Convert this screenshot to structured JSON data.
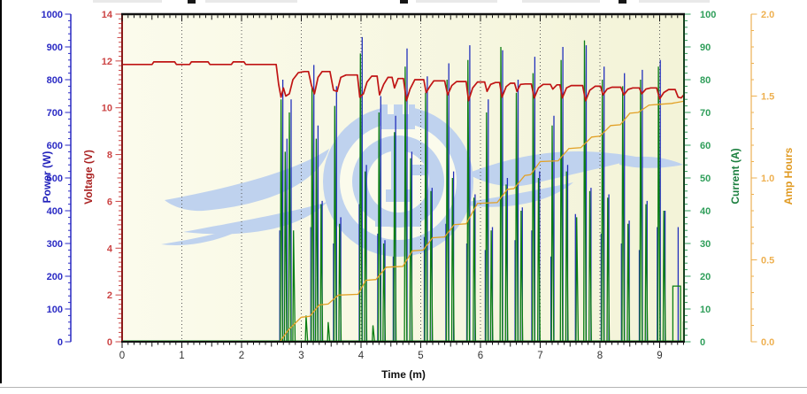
{
  "window": {
    "note": "cropped chart view of an e-flight data logger",
    "left_border_color": "#000000",
    "bottom_rule_color": "#b5b5b5"
  },
  "chart": {
    "plot_background_left": "#fbfbec",
    "plot_background_right": "#f3f3d8",
    "watermark_color": "#bfd2ee",
    "grid_color": "#555555",
    "top_border_color": "#111111",
    "bottom_border_color": "#111111"
  },
  "axes": {
    "power": {
      "title": "Power (W)",
      "color": "#2222bb",
      "tick_color": "#2a2ac4",
      "trace_color": "#2230bc",
      "min": 0,
      "max": 1000,
      "major_step": 100,
      "minor_step": 20,
      "tick_labels": [
        "0",
        "100",
        "200",
        "300",
        "400",
        "500",
        "600",
        "700",
        "800",
        "900",
        "1000"
      ]
    },
    "voltage": {
      "title": "Voltage (V)",
      "color": "#aa2222",
      "tick_color": "#c44",
      "trace_color": "#c01414",
      "border_color": "#8b1a1a",
      "min": 0,
      "max": 14,
      "major_step": 2,
      "minor_step": 0.2,
      "tick_labels": [
        "0",
        "2",
        "4",
        "6",
        "8",
        "10",
        "12",
        "14"
      ]
    },
    "current": {
      "title": "Current (A)",
      "color": "#1d8040",
      "tick_color": "#2f9e5a",
      "trace_color": "#0a7d12",
      "border_color": "#16401f",
      "min": 0,
      "max": 100,
      "major_step": 10,
      "minor_step": 2,
      "tick_labels": [
        "0",
        "10",
        "20",
        "30",
        "40",
        "50",
        "60",
        "70",
        "80",
        "90",
        "100"
      ]
    },
    "amp_hours": {
      "title": "Amp Hours",
      "color": "#e09a22",
      "tick_color": "#eeb050",
      "trace_color": "#e2a126",
      "axis_line_color": "#e8a030",
      "min": 0,
      "max": 2.0,
      "major_step": 0.5,
      "minor_step": 0.1,
      "tick_labels": [
        "0.0",
        "0.5",
        "1.0",
        "1.5",
        "2.0"
      ]
    },
    "time": {
      "title": "Time (m)",
      "color": "#111111",
      "tick_label_color": "#333333",
      "min": 0,
      "max": 9.41,
      "major_step": 1,
      "minor_step": 0.1,
      "tick_labels": [
        "0",
        "1",
        "2",
        "3",
        "4",
        "5",
        "6",
        "7",
        "8",
        "9"
      ]
    }
  },
  "chart_data": {
    "type": "line",
    "title": "",
    "xlabel": "Time (m)",
    "x_range": [
      0,
      9.41
    ],
    "grid": {
      "vertical_major": true,
      "horizontal": false,
      "style": "dotted"
    },
    "legend": "none",
    "y_axes": [
      {
        "name": "Power (W)",
        "range": [
          0,
          1000
        ]
      },
      {
        "name": "Voltage (V)",
        "range": [
          0,
          14
        ]
      },
      {
        "name": "Current (A)",
        "range": [
          0,
          100
        ]
      },
      {
        "name": "Amp Hours",
        "range": [
          0,
          2.0
        ]
      }
    ],
    "series": [
      {
        "name": "Voltage (V)",
        "axis": "voltage",
        "color": "#c01414",
        "style": "line",
        "points": [
          [
            0,
            11.85
          ],
          [
            0.5,
            11.85
          ],
          [
            0.53,
            11.96
          ],
          [
            0.88,
            11.96
          ],
          [
            0.91,
            11.85
          ],
          [
            1.13,
            11.85
          ],
          [
            1.16,
            11.96
          ],
          [
            1.44,
            11.96
          ],
          [
            1.47,
            11.85
          ],
          [
            1.83,
            11.85
          ],
          [
            1.86,
            11.96
          ],
          [
            2.04,
            11.96
          ],
          [
            2.07,
            11.85
          ],
          [
            2.58,
            11.85
          ],
          [
            2.62,
            11.0
          ],
          [
            2.66,
            10.45
          ],
          [
            2.7,
            10.85
          ],
          [
            2.74,
            10.5
          ],
          [
            2.8,
            10.6
          ],
          [
            2.86,
            11.2
          ],
          [
            2.95,
            11.5
          ],
          [
            3.05,
            11.55
          ],
          [
            3.12,
            11.55
          ],
          [
            3.17,
            10.95
          ],
          [
            3.22,
            10.6
          ],
          [
            3.28,
            11.3
          ],
          [
            3.35,
            11.55
          ],
          [
            3.48,
            11.55
          ],
          [
            3.54,
            10.75
          ],
          [
            3.6,
            10.7
          ],
          [
            3.66,
            11.3
          ],
          [
            3.75,
            11.4
          ],
          [
            3.94,
            11.4
          ],
          [
            3.98,
            10.45
          ],
          [
            4.04,
            10.6
          ],
          [
            4.1,
            11.1
          ],
          [
            4.18,
            11.35
          ],
          [
            4.27,
            11.35
          ],
          [
            4.31,
            10.55
          ],
          [
            4.38,
            11.0
          ],
          [
            4.45,
            11.3
          ],
          [
            4.52,
            11.3
          ],
          [
            4.56,
            10.85
          ],
          [
            4.62,
            11.25
          ],
          [
            4.71,
            11.25
          ],
          [
            4.76,
            10.3
          ],
          [
            4.82,
            10.8
          ],
          [
            4.9,
            11.2
          ],
          [
            5.05,
            11.2
          ],
          [
            5.09,
            10.65
          ],
          [
            5.15,
            10.9
          ],
          [
            5.22,
            11.15
          ],
          [
            5.4,
            11.15
          ],
          [
            5.45,
            10.55
          ],
          [
            5.52,
            10.95
          ],
          [
            5.6,
            11.12
          ],
          [
            5.76,
            11.12
          ],
          [
            5.8,
            10.3
          ],
          [
            5.87,
            10.85
          ],
          [
            5.95,
            11.1
          ],
          [
            6.07,
            11.1
          ],
          [
            6.11,
            10.7
          ],
          [
            6.17,
            11.0
          ],
          [
            6.25,
            11.08
          ],
          [
            6.32,
            11.08
          ],
          [
            6.36,
            10.45
          ],
          [
            6.43,
            10.9
          ],
          [
            6.5,
            11.05
          ],
          [
            6.57,
            11.05
          ],
          [
            6.61,
            10.7
          ],
          [
            6.67,
            11.0
          ],
          [
            6.75,
            11.02
          ],
          [
            6.85,
            11.02
          ],
          [
            6.9,
            10.42
          ],
          [
            6.97,
            10.85
          ],
          [
            7.05,
            11.0
          ],
          [
            7.17,
            11.0
          ],
          [
            7.21,
            10.8
          ],
          [
            7.28,
            10.98
          ],
          [
            7.33,
            10.98
          ],
          [
            7.37,
            10.42
          ],
          [
            7.44,
            10.85
          ],
          [
            7.52,
            10.95
          ],
          [
            7.71,
            10.95
          ],
          [
            7.76,
            10.3
          ],
          [
            7.83,
            10.75
          ],
          [
            7.92,
            10.92
          ],
          [
            8.01,
            10.92
          ],
          [
            8.05,
            10.55
          ],
          [
            8.12,
            10.8
          ],
          [
            8.2,
            10.88
          ],
          [
            8.35,
            10.88
          ],
          [
            8.4,
            10.55
          ],
          [
            8.47,
            10.78
          ],
          [
            8.55,
            10.85
          ],
          [
            8.66,
            10.85
          ],
          [
            8.7,
            10.6
          ],
          [
            8.77,
            10.8
          ],
          [
            8.85,
            10.85
          ],
          [
            8.95,
            10.85
          ],
          [
            9.0,
            10.38
          ],
          [
            9.07,
            10.65
          ],
          [
            9.15,
            10.78
          ],
          [
            9.26,
            10.78
          ],
          [
            9.31,
            10.45
          ],
          [
            9.36,
            10.42
          ],
          [
            9.42,
            10.6
          ],
          [
            9.47,
            10.75
          ],
          [
            9.55,
            10.72
          ]
        ]
      },
      {
        "name": "Amp Hours",
        "axis": "amp_hours",
        "color": "#e2a126",
        "style": "line",
        "points": [
          [
            0,
            0
          ],
          [
            2.64,
            0
          ],
          [
            2.78,
            0.07
          ],
          [
            3.0,
            0.15
          ],
          [
            3.14,
            0.155
          ],
          [
            3.3,
            0.225
          ],
          [
            3.45,
            0.23
          ],
          [
            3.62,
            0.285
          ],
          [
            3.95,
            0.29
          ],
          [
            4.08,
            0.375
          ],
          [
            4.25,
            0.38
          ],
          [
            4.42,
            0.455
          ],
          [
            4.7,
            0.46
          ],
          [
            4.86,
            0.555
          ],
          [
            5.04,
            0.56
          ],
          [
            5.2,
            0.635
          ],
          [
            5.4,
            0.64
          ],
          [
            5.56,
            0.715
          ],
          [
            5.76,
            0.72
          ],
          [
            5.95,
            0.845
          ],
          [
            6.28,
            0.85
          ],
          [
            6.45,
            0.93
          ],
          [
            6.56,
            0.935
          ],
          [
            6.74,
            1.015
          ],
          [
            6.84,
            1.02
          ],
          [
            7.0,
            1.1
          ],
          [
            7.3,
            1.105
          ],
          [
            7.48,
            1.18
          ],
          [
            7.68,
            1.185
          ],
          [
            7.86,
            1.25
          ],
          [
            8.0,
            1.255
          ],
          [
            8.18,
            1.32
          ],
          [
            8.34,
            1.325
          ],
          [
            8.5,
            1.395
          ],
          [
            8.64,
            1.4
          ],
          [
            8.82,
            1.445
          ],
          [
            9.0,
            1.45
          ],
          [
            9.2,
            1.455
          ],
          [
            9.35,
            1.465
          ],
          [
            9.42,
            1.47
          ]
        ]
      },
      {
        "name": "Current (A)",
        "axis": "current",
        "color": "#0a7d12",
        "style": "spikes",
        "baseline": 0,
        "spikes": [
          [
            2.66,
            74
          ],
          [
            2.73,
            58
          ],
          [
            2.8,
            70
          ],
          [
            2.87,
            34
          ],
          [
            3.08,
            8
          ],
          [
            3.18,
            78
          ],
          [
            3.25,
            62
          ],
          [
            3.33,
            42
          ],
          [
            3.45,
            6
          ],
          [
            3.56,
            72
          ],
          [
            3.64,
            36
          ],
          [
            3.99,
            88
          ],
          [
            4.07,
            52
          ],
          [
            4.2,
            5
          ],
          [
            4.3,
            70
          ],
          [
            4.38,
            30
          ],
          [
            4.56,
            64
          ],
          [
            4.74,
            84
          ],
          [
            4.83,
            56
          ],
          [
            5.08,
            76
          ],
          [
            5.17,
            46
          ],
          [
            5.44,
            80
          ],
          [
            5.53,
            50
          ],
          [
            5.79,
            86
          ],
          [
            5.89,
            44
          ],
          [
            6.1,
            70
          ],
          [
            6.18,
            34
          ],
          [
            6.34,
            90
          ],
          [
            6.43,
            48
          ],
          [
            6.6,
            76
          ],
          [
            6.68,
            40
          ],
          [
            6.88,
            82
          ],
          [
            6.97,
            50
          ],
          [
            7.2,
            66
          ],
          [
            7.35,
            86
          ],
          [
            7.44,
            52
          ],
          [
            7.61,
            38
          ],
          [
            7.74,
            92
          ],
          [
            7.83,
            46
          ],
          [
            8.04,
            80
          ],
          [
            8.13,
            44
          ],
          [
            8.38,
            78
          ],
          [
            8.47,
            36
          ],
          [
            8.68,
            80
          ],
          [
            8.77,
            42
          ],
          [
            8.98,
            84
          ],
          [
            9.07,
            40
          ],
          [
            9.42,
            34
          ]
        ],
        "steps": [
          [
            9.22,
            9.35,
            17
          ],
          [
            9.4,
            9.45,
            6
          ]
        ]
      },
      {
        "name": "Power (W)",
        "axis": "power",
        "color": "#2230bc",
        "style": "spikes",
        "baseline": 0,
        "spikes": [
          [
            2.64,
            340
          ],
          [
            2.69,
            800
          ],
          [
            2.76,
            620
          ],
          [
            2.83,
            740
          ],
          [
            3.16,
            350
          ],
          [
            3.21,
            845
          ],
          [
            3.28,
            660
          ],
          [
            3.35,
            430
          ],
          [
            3.54,
            300
          ],
          [
            3.59,
            780
          ],
          [
            3.66,
            380
          ],
          [
            3.97,
            420
          ],
          [
            4.02,
            930
          ],
          [
            4.09,
            540
          ],
          [
            4.28,
            330
          ],
          [
            4.33,
            750
          ],
          [
            4.4,
            310
          ],
          [
            4.54,
            260
          ],
          [
            4.58,
            690
          ],
          [
            4.77,
            895
          ],
          [
            4.85,
            580
          ],
          [
            5.06,
            320
          ],
          [
            5.11,
            810
          ],
          [
            5.19,
            470
          ],
          [
            5.42,
            360
          ],
          [
            5.47,
            850
          ],
          [
            5.55,
            520
          ],
          [
            5.77,
            300
          ],
          [
            5.82,
            905
          ],
          [
            5.91,
            450
          ],
          [
            6.08,
            280
          ],
          [
            6.13,
            740
          ],
          [
            6.2,
            350
          ],
          [
            6.37,
            890
          ],
          [
            6.45,
            500
          ],
          [
            6.58,
            310
          ],
          [
            6.63,
            800
          ],
          [
            6.7,
            410
          ],
          [
            6.86,
            340
          ],
          [
            6.91,
            870
          ],
          [
            6.99,
            520
          ],
          [
            7.18,
            260
          ],
          [
            7.23,
            690
          ],
          [
            7.38,
            900
          ],
          [
            7.46,
            540
          ],
          [
            7.59,
            390
          ],
          [
            7.77,
            905
          ],
          [
            7.85,
            470
          ],
          [
            8.02,
            330
          ],
          [
            8.07,
            840
          ],
          [
            8.15,
            450
          ],
          [
            8.36,
            300
          ],
          [
            8.41,
            820
          ],
          [
            8.49,
            370
          ],
          [
            8.66,
            280
          ],
          [
            8.71,
            830
          ],
          [
            8.79,
            430
          ],
          [
            8.96,
            350
          ],
          [
            9.01,
            860
          ],
          [
            9.09,
            400
          ],
          [
            9.31,
            350
          ],
          [
            9.44,
            360
          ]
        ]
      }
    ]
  }
}
